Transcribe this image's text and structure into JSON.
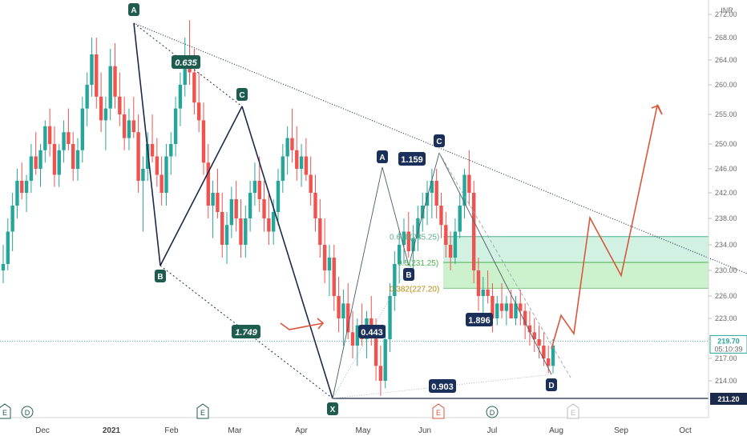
{
  "chart_data": {
    "type": "candlestick",
    "currency": "INR",
    "y_ticks": [
      214,
      217,
      220,
      223,
      226,
      230,
      234,
      238,
      242,
      246,
      250,
      255,
      260,
      264,
      268,
      272
    ],
    "y_tick_labels": [
      "214.00",
      "217.00",
      "220.00",
      "223.00",
      "226.00",
      "230.00",
      "234.00",
      "238.00",
      "242.00",
      "246.00",
      "250.00",
      "255.00",
      "260.00",
      "264.00",
      "268.00",
      "272.00"
    ],
    "x_labels": [
      "Dec",
      "2021",
      "Feb",
      "Mar",
      "Apr",
      "May",
      "Jun",
      "Jul",
      "Aug",
      "Sep",
      "Oct"
    ],
    "price_tag": {
      "value": "219.70",
      "time": "05:10:39"
    },
    "support_tag": {
      "value": "211.20"
    },
    "pattern_points": [
      {
        "label": "A",
        "price": 270.5
      },
      {
        "label": "B",
        "price": 231.0
      },
      {
        "label": "C",
        "price": 256.5
      },
      {
        "label": "X",
        "price": 211.2
      },
      {
        "label": "A",
        "price": 246.2
      },
      {
        "label": "B",
        "price": 231.5
      },
      {
        "label": "C",
        "price": 248.5
      },
      {
        "label": "D",
        "price": 215.5
      }
    ],
    "ratios": [
      "0.635",
      "1.749",
      "0.443",
      "1.159",
      "1.896",
      "0.903"
    ],
    "fib_levels": [
      {
        "label": "0.618(235.25)",
        "price": 235.25
      },
      {
        "label": "0.5(231.25)",
        "price": 231.25
      },
      {
        "label": "0.382(227.20)",
        "price": 227.2
      }
    ],
    "events": [
      "E",
      "D",
      "E",
      "E",
      "D",
      "E"
    ],
    "projection": [
      218.5,
      223.4,
      220.8,
      238.1,
      229.2,
      256.5,
      255.0
    ],
    "candles": [
      [
        230,
        234,
        228,
        231
      ],
      [
        231,
        238,
        230,
        236
      ],
      [
        236,
        242,
        233,
        240
      ],
      [
        240,
        246,
        238,
        244
      ],
      [
        244,
        247,
        241,
        242
      ],
      [
        242,
        245,
        239,
        244
      ],
      [
        244,
        250,
        242,
        248
      ],
      [
        248,
        252,
        245,
        246
      ],
      [
        246,
        250,
        243,
        249
      ],
      [
        249,
        254,
        247,
        253
      ],
      [
        253,
        256,
        248,
        250
      ],
      [
        250,
        253,
        243,
        245
      ],
      [
        245,
        250,
        243,
        249
      ],
      [
        249,
        254,
        247,
        252
      ],
      [
        252,
        256,
        249,
        250
      ],
      [
        250,
        252,
        244,
        246
      ],
      [
        246,
        251,
        244,
        249
      ],
      [
        249,
        258,
        247,
        256
      ],
      [
        256,
        262,
        253,
        260
      ],
      [
        260,
        268,
        258,
        265
      ],
      [
        265,
        268,
        256,
        258
      ],
      [
        258,
        262,
        252,
        254
      ],
      [
        254,
        258,
        249,
        256
      ],
      [
        256,
        266,
        254,
        263
      ],
      [
        263,
        267,
        256,
        258
      ],
      [
        258,
        262,
        253,
        255
      ],
      [
        255,
        258,
        249,
        251
      ],
      [
        251,
        256,
        249,
        254
      ],
      [
        254,
        258,
        251,
        252
      ],
      [
        252,
        255,
        242,
        244
      ],
      [
        244,
        248,
        236,
        246
      ],
      [
        246,
        252,
        244,
        250
      ],
      [
        250,
        255,
        247,
        248
      ],
      [
        248,
        251,
        243,
        245
      ],
      [
        245,
        248,
        240,
        242
      ],
      [
        242,
        250,
        240,
        248
      ],
      [
        248,
        252,
        245,
        250
      ],
      [
        250,
        258,
        248,
        256
      ],
      [
        256,
        262,
        253,
        260
      ],
      [
        260,
        268,
        258,
        264
      ],
      [
        264,
        271,
        260,
        262
      ],
      [
        262,
        266,
        255,
        257
      ],
      [
        257,
        262,
        252,
        254
      ],
      [
        254,
        257,
        245,
        247
      ],
      [
        247,
        250,
        238,
        240
      ],
      [
        240,
        244,
        235,
        242
      ],
      [
        242,
        246,
        238,
        239
      ],
      [
        239,
        242,
        232,
        234
      ],
      [
        234,
        239,
        231,
        237
      ],
      [
        237,
        243,
        235,
        241
      ],
      [
        241,
        244,
        236,
        238
      ],
      [
        238,
        241,
        232,
        234
      ],
      [
        234,
        240,
        232,
        238
      ],
      [
        238,
        244,
        236,
        242
      ],
      [
        242,
        247,
        240,
        244
      ],
      [
        244,
        248,
        239,
        241
      ],
      [
        241,
        244,
        236,
        238
      ],
      [
        238,
        242,
        234,
        236
      ],
      [
        236,
        241,
        234,
        239
      ],
      [
        239,
        246,
        237,
        244
      ],
      [
        244,
        250,
        242,
        248
      ],
      [
        248,
        253,
        245,
        251
      ],
      [
        251,
        256,
        247,
        249
      ],
      [
        249,
        253,
        244,
        246
      ],
      [
        246,
        250,
        243,
        248
      ],
      [
        248,
        251,
        244,
        245
      ],
      [
        245,
        248,
        240,
        242
      ],
      [
        242,
        245,
        236,
        238
      ],
      [
        238,
        241,
        232,
        234
      ],
      [
        234,
        238,
        228,
        230
      ],
      [
        230,
        234,
        226,
        232
      ],
      [
        232,
        234,
        224,
        226
      ],
      [
        226,
        229,
        221,
        223
      ],
      [
        223,
        227,
        219,
        225
      ],
      [
        225,
        228,
        220,
        221
      ],
      [
        221,
        224,
        217,
        219
      ],
      [
        219,
        223,
        216,
        222
      ],
      [
        222,
        225,
        219,
        220
      ],
      [
        220,
        224,
        217,
        223
      ],
      [
        223,
        226,
        219,
        221
      ],
      [
        221,
        223,
        214,
        216
      ],
      [
        216,
        219,
        212,
        214
      ],
      [
        214,
        222,
        213,
        220
      ],
      [
        220,
        228,
        218,
        226
      ],
      [
        226,
        233,
        224,
        231
      ],
      [
        231,
        236,
        228,
        234
      ],
      [
        234,
        238,
        231,
        236
      ],
      [
        236,
        239,
        232,
        233
      ],
      [
        233,
        237,
        230,
        235
      ],
      [
        235,
        240,
        233,
        238
      ],
      [
        238,
        242,
        236,
        240
      ],
      [
        240,
        244,
        237,
        242
      ],
      [
        242,
        246,
        238,
        244
      ],
      [
        244,
        246,
        238,
        240
      ],
      [
        240,
        242,
        235,
        237
      ],
      [
        237,
        239,
        232,
        234
      ],
      [
        234,
        236,
        230,
        232
      ],
      [
        232,
        238,
        231,
        236
      ],
      [
        236,
        242,
        235,
        240
      ],
      [
        240,
        246,
        238,
        245
      ],
      [
        245,
        249,
        240,
        242
      ],
      [
        242,
        244,
        228,
        230
      ],
      [
        230,
        232,
        224,
        226
      ],
      [
        226,
        229,
        223,
        227
      ],
      [
        227,
        230,
        225,
        226
      ],
      [
        226,
        228,
        221,
        223
      ],
      [
        223,
        226,
        222,
        225
      ],
      [
        225,
        228,
        223,
        224
      ],
      [
        224,
        226,
        222,
        225
      ],
      [
        225,
        227,
        223,
        223
      ],
      [
        223,
        226,
        222,
        225
      ],
      [
        225,
        227,
        222,
        224
      ],
      [
        224,
        225,
        220,
        222
      ],
      [
        222,
        224,
        219,
        221
      ],
      [
        221,
        223,
        218,
        220
      ],
      [
        220,
        222,
        217,
        219
      ],
      [
        219,
        221,
        216,
        217
      ],
      [
        217,
        219,
        215,
        216
      ],
      [
        216,
        220,
        215,
        219
      ]
    ]
  }
}
